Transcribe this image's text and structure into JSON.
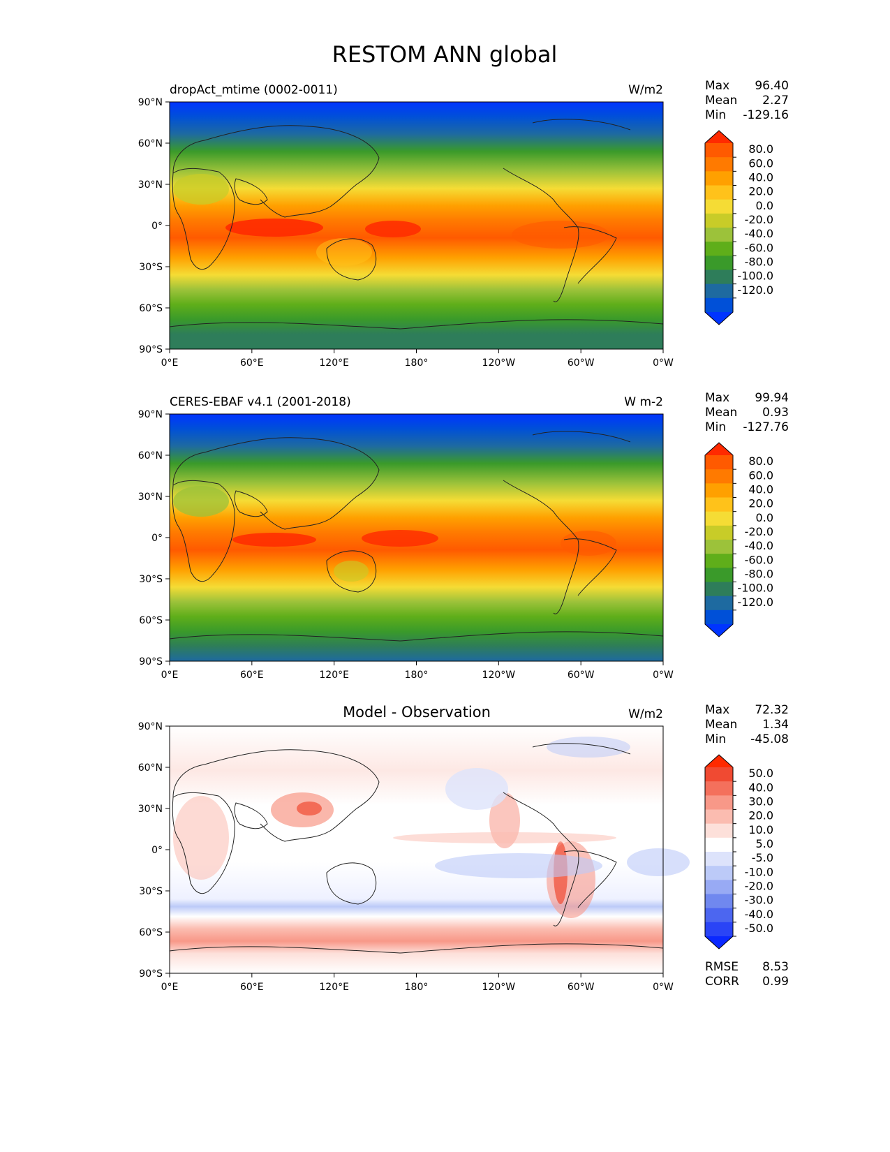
{
  "title": "RESTOM ANN global",
  "x_ticks": [
    "0°E",
    "60°E",
    "120°E",
    "180°",
    "120°W",
    "60°W",
    "0°W"
  ],
  "y_ticks": [
    "90°N",
    "60°N",
    "30°N",
    "0°",
    "30°S",
    "60°S",
    "90°S"
  ],
  "stat_labels": {
    "max": "Max",
    "mean": "Mean",
    "min": "Min",
    "rmse": "RMSE",
    "corr": "CORR"
  },
  "panels": [
    {
      "left_title": "dropAct_mtime (0002-0011)",
      "center_title": "",
      "units": "W/m2",
      "stats": {
        "max": "96.40",
        "mean": "2.27",
        "min": "-129.16"
      },
      "colorbar": {
        "labels": [
          "80.0",
          "60.0",
          "40.0",
          "20.0",
          "0.0",
          "-20.0",
          "-40.0",
          "-60.0",
          "-80.0",
          "-100.0",
          "-120.0"
        ],
        "colors": [
          "#ff2a00",
          "#ff5a00",
          "#ff7a00",
          "#ffa000",
          "#ffc21a",
          "#f5dc35",
          "#c8cc28",
          "#9cc23a",
          "#5fae1a",
          "#3a9a2a",
          "#2e7d5a",
          "#1e6aa0",
          "#0050d8",
          "#0034ff"
        ]
      }
    },
    {
      "left_title": "CERES-EBAF v4.1 (2001-2018)",
      "center_title": "",
      "units": "W m-2",
      "stats": {
        "max": "99.94",
        "mean": "0.93",
        "min": "-127.76"
      },
      "colorbar": {
        "labels": [
          "80.0",
          "60.0",
          "40.0",
          "20.0",
          "0.0",
          "-20.0",
          "-40.0",
          "-60.0",
          "-80.0",
          "-100.0",
          "-120.0"
        ],
        "colors": [
          "#ff2a00",
          "#ff5a00",
          "#ff7a00",
          "#ffa000",
          "#ffc21a",
          "#f5dc35",
          "#c8cc28",
          "#9cc23a",
          "#5fae1a",
          "#3a9a2a",
          "#2e7d5a",
          "#1e6aa0",
          "#0050d8",
          "#0034ff"
        ]
      }
    },
    {
      "left_title": "",
      "center_title": "Model - Observation",
      "units": "W/m2",
      "stats": {
        "max": "72.32",
        "mean": "1.34",
        "min": "-45.08",
        "rmse": "8.53",
        "corr": "0.99"
      },
      "colorbar": {
        "labels": [
          "50.0",
          "40.0",
          "30.0",
          "20.0",
          "10.0",
          "5.0",
          "-5.0",
          "-10.0",
          "-20.0",
          "-30.0",
          "-40.0",
          "-50.0"
        ],
        "colors": [
          "#ff2a00",
          "#f04a32",
          "#f4705c",
          "#f89888",
          "#fbbcb0",
          "#fde0da",
          "#ffffff",
          "#dde3fb",
          "#bccaf8",
          "#98aaf4",
          "#7088ef",
          "#4c66f0",
          "#2a44f6",
          "#0a28ff"
        ]
      }
    }
  ],
  "chart_data": [
    {
      "type": "heatmap",
      "title": "dropAct_mtime (0002-0011)",
      "units": "W/m2",
      "x_ticks": [
        "0°E",
        "60°E",
        "120°E",
        "180°",
        "120°W",
        "60°W",
        "0°W"
      ],
      "y_ticks": [
        "90°N",
        "60°N",
        "30°N",
        "0°",
        "30°S",
        "60°S",
        "90°S"
      ],
      "xlim": [
        0,
        360
      ],
      "ylim": [
        -90,
        90
      ],
      "color_levels": [
        -120,
        -100,
        -80,
        -60,
        -40,
        -20,
        0,
        20,
        40,
        60,
        80
      ],
      "stats": {
        "max": 96.4,
        "mean": 2.27,
        "min": -129.16
      }
    },
    {
      "type": "heatmap",
      "title": "CERES-EBAF v4.1 (2001-2018)",
      "units": "W m-2",
      "x_ticks": [
        "0°E",
        "60°E",
        "120°E",
        "180°",
        "120°W",
        "60°W",
        "0°W"
      ],
      "y_ticks": [
        "90°N",
        "60°N",
        "30°N",
        "0°",
        "30°S",
        "60°S",
        "90°S"
      ],
      "xlim": [
        0,
        360
      ],
      "ylim": [
        -90,
        90
      ],
      "color_levels": [
        -120,
        -100,
        -80,
        -60,
        -40,
        -20,
        0,
        20,
        40,
        60,
        80
      ],
      "stats": {
        "max": 99.94,
        "mean": 0.93,
        "min": -127.76
      }
    },
    {
      "type": "heatmap",
      "title": "Model - Observation",
      "units": "W/m2",
      "x_ticks": [
        "0°E",
        "60°E",
        "120°E",
        "180°",
        "120°W",
        "60°W",
        "0°W"
      ],
      "y_ticks": [
        "90°N",
        "60°N",
        "30°N",
        "0°",
        "30°S",
        "60°S",
        "90°S"
      ],
      "xlim": [
        0,
        360
      ],
      "ylim": [
        -90,
        90
      ],
      "color_levels": [
        -50,
        -40,
        -30,
        -20,
        -10,
        -5,
        5,
        10,
        20,
        30,
        40,
        50
      ],
      "stats": {
        "max": 72.32,
        "mean": 1.34,
        "min": -45.08,
        "rmse": 8.53,
        "corr": 0.99
      }
    }
  ]
}
